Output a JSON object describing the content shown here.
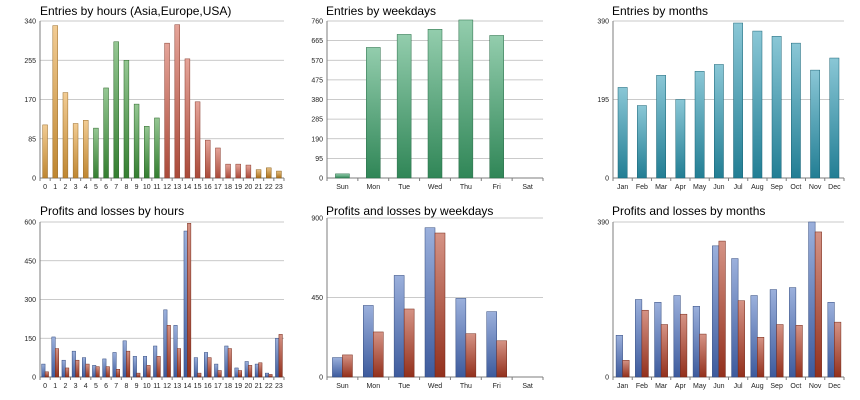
{
  "chart_data": [
    {
      "type": "bar",
      "title": "Entries by hours (Asia,Europe,USA)",
      "categories": [
        "0",
        "1",
        "2",
        "3",
        "4",
        "5",
        "6",
        "7",
        "8",
        "9",
        "10",
        "11",
        "12",
        "13",
        "14",
        "15",
        "16",
        "17",
        "18",
        "19",
        "20",
        "21",
        "22",
        "23"
      ],
      "values": [
        115,
        330,
        185,
        118,
        125,
        108,
        195,
        295,
        255,
        160,
        112,
        130,
        292,
        332,
        258,
        165,
        82,
        65,
        30,
        30,
        28,
        18,
        22,
        15
      ],
      "bar_groups": [
        "#e8a33c",
        "#e8a33c",
        "#e8a33c",
        "#e8a33c",
        "#e8a33c",
        "#3f9a3b",
        "#3f9a3b",
        "#3f9a3b",
        "#3f9a3b",
        "#3f9a3b",
        "#3f9a3b",
        "#3f9a3b",
        "#cf5a45",
        "#cf5a45",
        "#cf5a45",
        "#cf5a45",
        "#cf5a45",
        "#cf5a45",
        "#cf5a45",
        "#cf5a45",
        "#cf5a45",
        "#d08a1e",
        "#d08a1e",
        "#d08a1e"
      ],
      "ylim": [
        0,
        340
      ],
      "yticks": [
        0,
        85,
        170,
        255,
        340
      ],
      "grid": true
    },
    {
      "type": "bar",
      "title": "Entries by weekdays",
      "categories": [
        "Sun",
        "Mon",
        "Tue",
        "Wed",
        "Thu",
        "Fri",
        "Sat"
      ],
      "values": [
        20,
        632,
        695,
        720,
        765,
        690,
        0
      ],
      "color": "#3aa46a",
      "ylim": [
        0,
        760
      ],
      "yticks": [
        0,
        95,
        190,
        285,
        380,
        475,
        570,
        665,
        760
      ],
      "grid": true
    },
    {
      "type": "bar",
      "title": "Entries by months",
      "categories": [
        "Jan",
        "Feb",
        "Mar",
        "Apr",
        "May",
        "Jun",
        "Jul",
        "Aug",
        "Sep",
        "Oct",
        "Nov",
        "Dec"
      ],
      "values": [
        225,
        180,
        255,
        195,
        265,
        282,
        385,
        365,
        352,
        335,
        268,
        298
      ],
      "color": "#2a9ab5",
      "ylim": [
        0,
        390
      ],
      "yticks": [
        0,
        195,
        390
      ],
      "grid": true
    },
    {
      "type": "bar",
      "title": "Profits and losses by hours",
      "categories": [
        "0",
        "1",
        "2",
        "3",
        "4",
        "5",
        "6",
        "7",
        "8",
        "9",
        "10",
        "11",
        "12",
        "13",
        "14",
        "15",
        "16",
        "17",
        "18",
        "19",
        "20",
        "21",
        "22",
        "23"
      ],
      "series": [
        {
          "color": "#4a6fc0",
          "values": [
            50,
            155,
            65,
            100,
            75,
            45,
            70,
            95,
            140,
            80,
            80,
            120,
            260,
            200,
            565,
            75,
            95,
            50,
            120,
            35,
            60,
            50,
            15,
            150
          ]
        },
        {
          "color": "#b33a22",
          "values": [
            20,
            110,
            35,
            65,
            50,
            40,
            40,
            30,
            100,
            15,
            45,
            80,
            200,
            110,
            595,
            15,
            75,
            25,
            110,
            25,
            45,
            55,
            10,
            165
          ]
        }
      ],
      "ylim": [
        0,
        600
      ],
      "yticks": [
        0,
        150,
        300,
        450,
        600
      ],
      "grid": true
    },
    {
      "type": "bar",
      "title": "Profits and losses by weekdays",
      "categories": [
        "Sun",
        "Mon",
        "Tue",
        "Wed",
        "Thu",
        "Fri",
        "Sat"
      ],
      "series": [
        {
          "color": "#4a6fc0",
          "values": [
            110,
            405,
            575,
            845,
            445,
            370,
            0
          ]
        },
        {
          "color": "#b33a22",
          "values": [
            125,
            255,
            385,
            815,
            245,
            205,
            0
          ]
        }
      ],
      "ylim": [
        0,
        900
      ],
      "yticks": [
        0,
        450,
        900
      ],
      "grid": true
    },
    {
      "type": "bar",
      "title": "Profits and losses by months",
      "categories": [
        "Jan",
        "Feb",
        "Mar",
        "Apr",
        "May",
        "Jun",
        "Jul",
        "Aug",
        "Sep",
        "Oct",
        "Nov",
        "Dec"
      ],
      "series": [
        {
          "color": "#4a6fc0",
          "values": [
            105,
            195,
            188,
            205,
            178,
            330,
            298,
            205,
            220,
            225,
            390,
            188
          ]
        },
        {
          "color": "#b33a22",
          "values": [
            42,
            168,
            132,
            158,
            108,
            342,
            192,
            100,
            132,
            130,
            365,
            138
          ]
        }
      ],
      "ylim": [
        0,
        390
      ],
      "yticks": [
        0,
        390
      ],
      "grid": true
    }
  ]
}
